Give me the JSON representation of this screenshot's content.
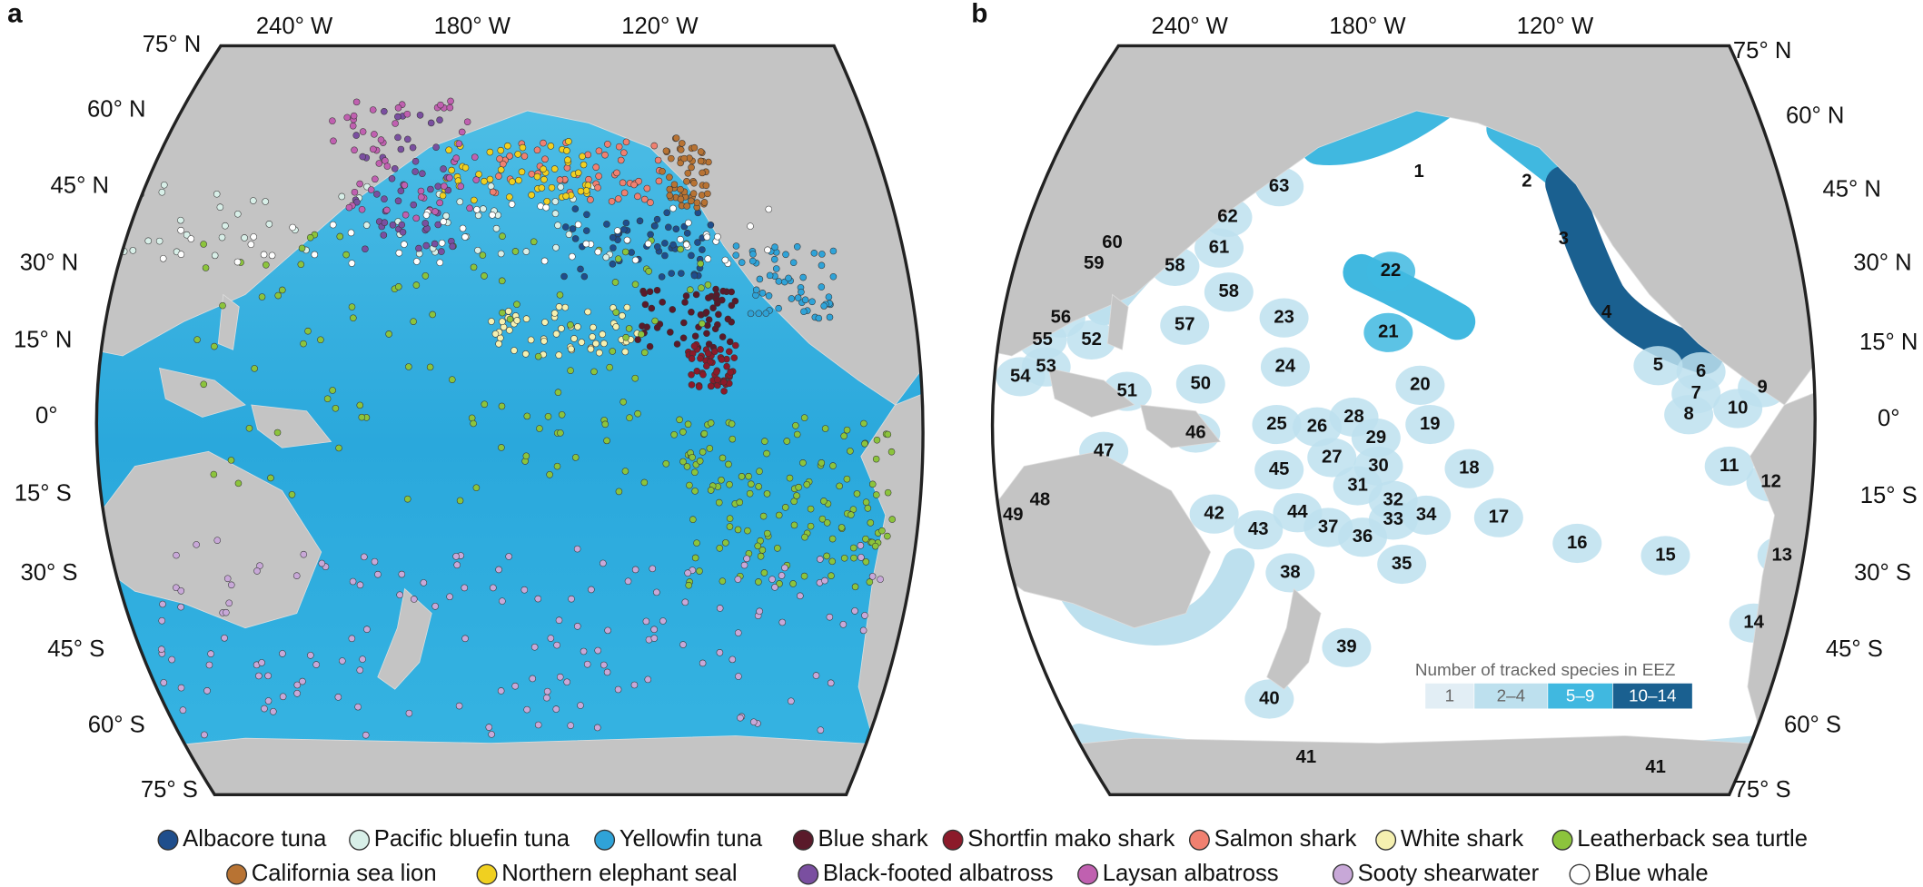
{
  "panels": [
    {
      "letter": "a",
      "lat_labels": [
        "75° N",
        "60° N",
        "45° N",
        "30° N",
        "15° N",
        "0°",
        "15° S",
        "30° S",
        "45° S",
        "60° S",
        "75° S"
      ],
      "lon_labels": [
        "240° W",
        "180° W",
        "120° W"
      ]
    },
    {
      "letter": "b",
      "lat_labels": [
        "75° N",
        "60° N",
        "45° N",
        "30° N",
        "15° N",
        "0°",
        "15° S",
        "30° S",
        "45° S",
        "60° S",
        "75° S"
      ],
      "lon_labels": [
        "240° W",
        "180° W",
        "120° W"
      ]
    }
  ],
  "eez_labels": [
    "1",
    "2",
    "3",
    "4",
    "5",
    "6",
    "7",
    "8",
    "9",
    "10",
    "11",
    "12",
    "13",
    "14",
    "15",
    "16",
    "17",
    "18",
    "19",
    "20",
    "21",
    "22",
    "23",
    "24",
    "25",
    "26",
    "27",
    "28",
    "29",
    "30",
    "31",
    "32",
    "33",
    "34",
    "35",
    "36",
    "37",
    "38",
    "39",
    "40",
    "41",
    "41",
    "42",
    "43",
    "44",
    "45",
    "46",
    "47",
    "48",
    "49",
    "50",
    "51",
    "52",
    "53",
    "54",
    "55",
    "56",
    "57",
    "58",
    "58",
    "59",
    "60",
    "61",
    "62",
    "63"
  ],
  "colorbar": {
    "title": "Number of tracked species in EEZ",
    "bins": [
      "1",
      "2–4",
      "5–9",
      "10–14"
    ],
    "colors": [
      "#e2eef5",
      "#bde0ee",
      "#40b8e0",
      "#1a6090"
    ]
  },
  "legend": {
    "items": [
      {
        "name": "Albacore tuna",
        "color": "#1f4e8c"
      },
      {
        "name": "Pacific bluefin tuna",
        "color": "#d8efe8"
      },
      {
        "name": "Yellowfin tuna",
        "color": "#2fa3d8"
      },
      {
        "name": "Blue shark",
        "color": "#5a1a2a"
      },
      {
        "name": "Shortfin mako shark",
        "color": "#8c1a2a"
      },
      {
        "name": "Salmon shark",
        "color": "#f08070"
      },
      {
        "name": "White shark",
        "color": "#f5f0b0"
      },
      {
        "name": "Leatherback sea turtle",
        "color": "#8cc43c"
      },
      {
        "name": "California sea lion",
        "color": "#b87333"
      },
      {
        "name": "Northern elephant seal",
        "color": "#f0d020"
      },
      {
        "name": "Black-footed albatross",
        "color": "#7a4fa0"
      },
      {
        "name": "Laysan albatross",
        "color": "#c060b0"
      },
      {
        "name": "Sooty shearwater",
        "color": "#c8a8d8"
      },
      {
        "name": "Blue whale",
        "color": "#ffffff"
      }
    ]
  }
}
